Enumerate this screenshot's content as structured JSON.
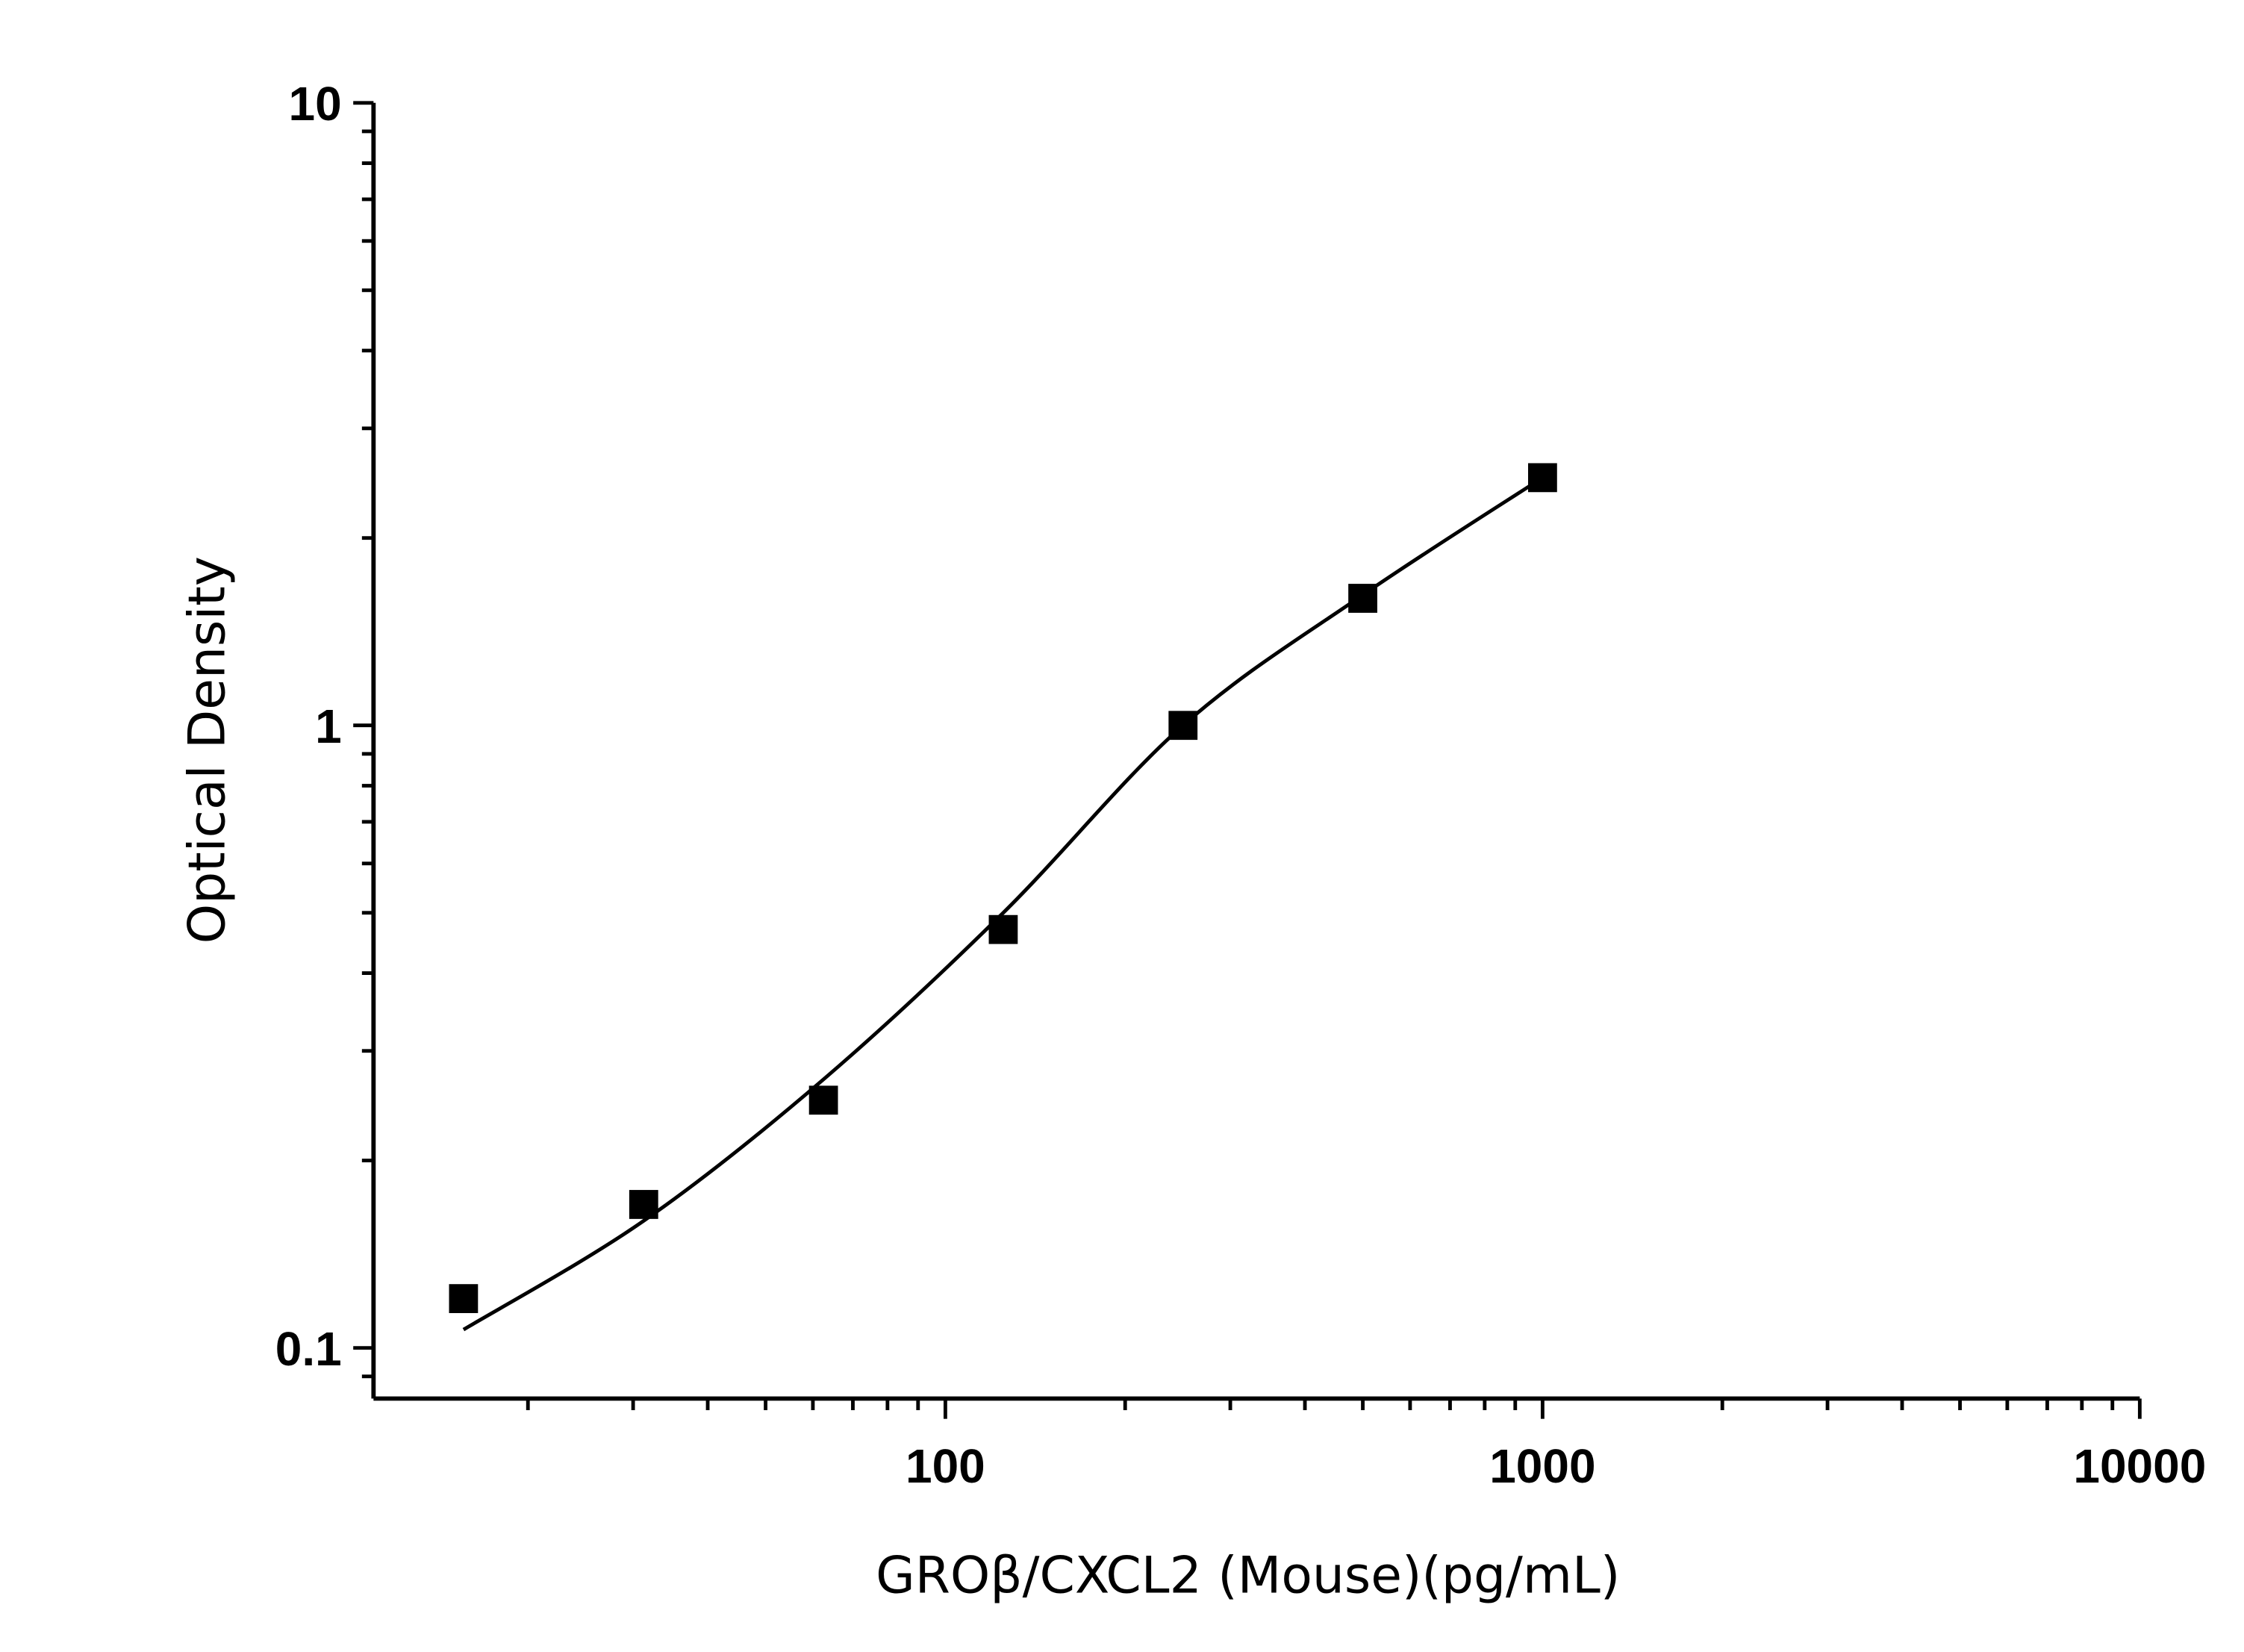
{
  "chart_data": {
    "type": "scatter",
    "title": "",
    "xlabel": "GROβ/CXCL2 (Mouse)(pg/mL)",
    "ylabel": "Optical Density",
    "xscale": "log",
    "yscale": "log",
    "xlim": [
      11,
      10000
    ],
    "ylim": [
      0.083,
      10
    ],
    "x_ticks": [
      {
        "value": 100,
        "label": "100"
      },
      {
        "value": 1000,
        "label": "1000"
      },
      {
        "value": 10000,
        "label": "10000"
      }
    ],
    "y_ticks": [
      {
        "value": 0.1,
        "label": "0.1"
      },
      {
        "value": 1,
        "label": "1"
      },
      {
        "value": 10,
        "label": "10"
      }
    ],
    "grid": false,
    "marker": "square",
    "color": "#000000",
    "points": {
      "x": [
        15.6,
        31.25,
        62.5,
        125,
        250,
        500,
        1000
      ],
      "y": [
        0.12,
        0.17,
        0.25,
        0.47,
        1.0,
        1.6,
        2.5
      ]
    },
    "fit_curve": {
      "x": [
        15.6,
        31.25,
        62.5,
        125,
        250,
        500,
        1000
      ],
      "y": [
        0.107,
        0.16,
        0.27,
        0.5,
        1.0,
        1.62,
        2.5
      ]
    }
  }
}
